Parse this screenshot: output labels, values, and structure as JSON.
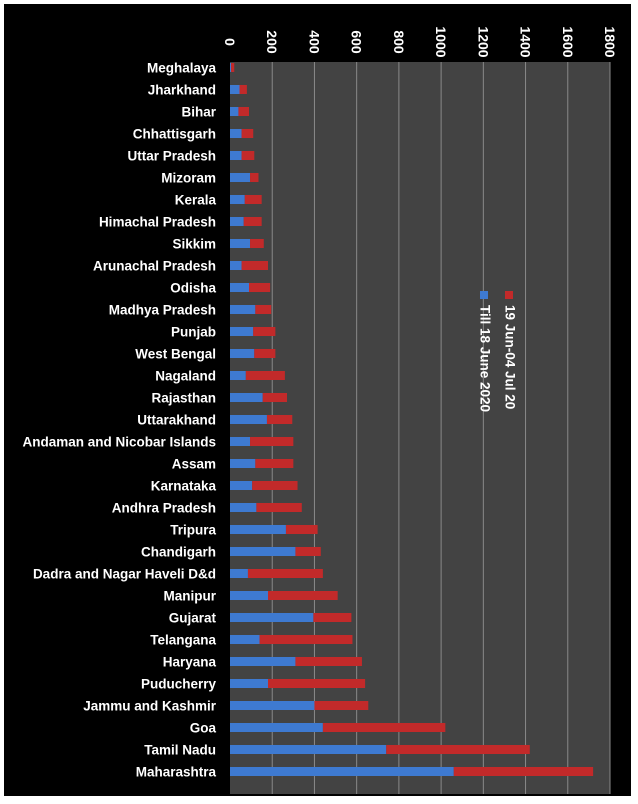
{
  "chart_data": {
    "type": "bar",
    "orientation": "horizontal",
    "stacked": true,
    "categories": [
      "Meghalaya",
      "Jharkhand",
      "Bihar",
      "Chhattisgarh",
      "Uttar Pradesh",
      "Mizoram",
      "Kerala",
      "Himachal Pradesh",
      "Sikkim",
      "Arunachal Pradesh",
      "Odisha",
      "Madhya Pradesh",
      "Punjab",
      "West Bengal",
      "Nagaland",
      "Rajasthan",
      "Uttarakhand",
      "Andaman and Nicobar Islands",
      "Assam",
      "Karnataka",
      "Andhra Pradesh",
      "Tripura",
      "Chandigarh",
      "Dadra and Nagar Haveli D&d",
      "Manipur",
      "Gujarat",
      "Telangana",
      "Haryana",
      "Puducherry",
      "Jammu and Kashmir",
      "Goa",
      "Tamil Nadu",
      "Maharashtra"
    ],
    "series": [
      {
        "name": "Till 18 June 2020",
        "color": "#3e7ad1",
        "values": [
          5,
          45,
          40,
          55,
          55,
          95,
          70,
          65,
          95,
          55,
          90,
          120,
          110,
          115,
          75,
          155,
          175,
          95,
          120,
          105,
          125,
          265,
          310,
          85,
          180,
          395,
          140,
          310,
          180,
          400,
          440,
          740,
          1060
        ]
      },
      {
        "name": "19 Jun-04 Jul 20",
        "color": "#c22a2a",
        "values": [
          15,
          35,
          50,
          55,
          60,
          40,
          80,
          85,
          65,
          125,
          100,
          75,
          105,
          100,
          185,
          115,
          120,
          205,
          180,
          215,
          215,
          150,
          120,
          355,
          330,
          180,
          440,
          315,
          460,
          255,
          580,
          680,
          660
        ]
      }
    ],
    "value_axis": {
      "min": 0,
      "max": 1800,
      "ticks": [
        0,
        200,
        400,
        600,
        800,
        1000,
        1200,
        1400,
        1600,
        1800
      ]
    },
    "grid": true,
    "legend_position": "center-right"
  }
}
